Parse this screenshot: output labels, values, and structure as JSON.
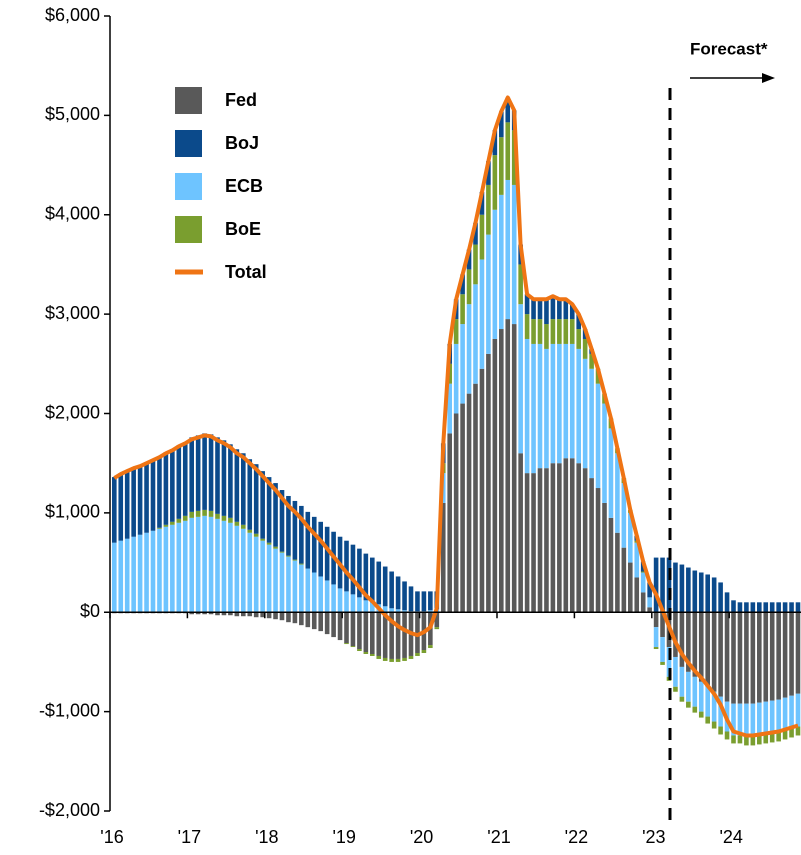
{
  "chart_data": {
    "type": "bar",
    "stacked": true,
    "categories": [
      "'16",
      null,
      null,
      null,
      null,
      null,
      null,
      null,
      null,
      null,
      null,
      null,
      "'17",
      null,
      null,
      null,
      null,
      null,
      null,
      null,
      null,
      null,
      null,
      null,
      "'18",
      null,
      null,
      null,
      null,
      null,
      null,
      null,
      null,
      null,
      null,
      null,
      "'19",
      null,
      null,
      null,
      null,
      null,
      null,
      null,
      null,
      null,
      null,
      null,
      "'20",
      null,
      null,
      null,
      null,
      null,
      null,
      null,
      null,
      null,
      null,
      null,
      "'21",
      null,
      null,
      null,
      null,
      null,
      null,
      null,
      null,
      null,
      null,
      null,
      "'22",
      null,
      null,
      null,
      null,
      null,
      null,
      null,
      null,
      null,
      null,
      null,
      "'23",
      null,
      null,
      null,
      null,
      null,
      null,
      null,
      null,
      null,
      null,
      null,
      "'24",
      null,
      null,
      null,
      null,
      null,
      null,
      null,
      null,
      null,
      null
    ],
    "series": [
      {
        "name": "Fed",
        "color": "#595959",
        "values": [
          -10,
          -10,
          -10,
          -10,
          -10,
          -10,
          -10,
          -10,
          -10,
          -10,
          -10,
          -10,
          -20,
          -20,
          -20,
          -20,
          -30,
          -30,
          -30,
          -40,
          -40,
          -40,
          -50,
          -50,
          -60,
          -70,
          -80,
          -100,
          -110,
          -130,
          -150,
          -170,
          -190,
          -220,
          -250,
          -280,
          -310,
          -340,
          -370,
          -400,
          -420,
          -440,
          -460,
          -470,
          -470,
          -460,
          -440,
          -410,
          -380,
          -330,
          -150,
          1100,
          1800,
          2000,
          2100,
          2200,
          2300,
          2450,
          2600,
          2750,
          2850,
          2950,
          2900,
          1600,
          1400,
          1400,
          1450,
          1450,
          1500,
          1500,
          1550,
          1550,
          1500,
          1450,
          1350,
          1250,
          1100,
          950,
          800,
          650,
          500,
          350,
          200,
          50,
          -150,
          -250,
          -350,
          -450,
          -550,
          -600,
          -650,
          -700,
          -750,
          -800,
          -850,
          -900,
          -920,
          -920,
          -920,
          -920,
          -910,
          -900,
          -890,
          -880,
          -860,
          -840,
          -820
        ]
      },
      {
        "name": "BoJ",
        "color": "#0b4a8b",
        "values": [
          660,
          680,
          690,
          700,
          700,
          710,
          720,
          720,
          730,
          730,
          740,
          740,
          750,
          760,
          770,
          770,
          770,
          760,
          740,
          730,
          720,
          710,
          700,
          680,
          660,
          640,
          620,
          600,
          590,
          580,
          570,
          560,
          550,
          540,
          530,
          520,
          510,
          500,
          490,
          470,
          450,
          430,
          400,
          370,
          330,
          290,
          250,
          200,
          200,
          190,
          180,
          200,
          200,
          200,
          200,
          200,
          220,
          230,
          240,
          250,
          260,
          250,
          200,
          200,
          200,
          200,
          200,
          250,
          230,
          200,
          200,
          150,
          150,
          100,
          50,
          0,
          0,
          0,
          0,
          0,
          0,
          50,
          100,
          150,
          550,
          550,
          550,
          500,
          480,
          450,
          420,
          400,
          380,
          350,
          300,
          200,
          120,
          100,
          100,
          100,
          100,
          100,
          100,
          100,
          100,
          100,
          100
        ]
      },
      {
        "name": "ECB",
        "color": "#6ec4ff",
        "values": [
          700,
          720,
          740,
          760,
          780,
          800,
          820,
          840,
          860,
          880,
          900,
          920,
          950,
          960,
          970,
          960,
          940,
          920,
          900,
          870,
          840,
          800,
          760,
          720,
          680,
          640,
          600,
          560,
          520,
          480,
          440,
          400,
          360,
          320,
          280,
          240,
          210,
          180,
          150,
          120,
          100,
          80,
          60,
          40,
          30,
          20,
          10,
          10,
          10,
          20,
          30,
          300,
          500,
          700,
          800,
          900,
          1000,
          1100,
          1200,
          1300,
          1350,
          1400,
          1400,
          1500,
          1350,
          1300,
          1250,
          1200,
          1200,
          1200,
          1150,
          1150,
          1150,
          1100,
          1100,
          1050,
          1000,
          900,
          800,
          650,
          500,
          350,
          200,
          100,
          -200,
          -250,
          -300,
          -300,
          -300,
          -300,
          -300,
          -300,
          -300,
          -300,
          -300,
          -300,
          -320,
          -320,
          -330,
          -330,
          -330,
          -330,
          -330,
          -330,
          -330,
          -330,
          -330
        ]
      },
      {
        "name": "BoE",
        "color": "#7a9e2f",
        "values": [
          0,
          0,
          0,
          0,
          0,
          0,
          0,
          10,
          20,
          30,
          40,
          50,
          60,
          60,
          60,
          60,
          50,
          50,
          50,
          40,
          40,
          30,
          30,
          20,
          20,
          20,
          10,
          10,
          10,
          10,
          0,
          0,
          0,
          0,
          0,
          0,
          -10,
          -10,
          -20,
          -20,
          -20,
          -30,
          -30,
          -30,
          -30,
          -30,
          -30,
          -30,
          -30,
          -30,
          -20,
          100,
          200,
          250,
          300,
          350,
          400,
          450,
          500,
          550,
          580,
          580,
          550,
          400,
          250,
          250,
          250,
          250,
          250,
          250,
          250,
          250,
          200,
          200,
          150,
          150,
          100,
          100,
          50,
          50,
          30,
          20,
          10,
          0,
          -20,
          -30,
          -40,
          -50,
          -50,
          -60,
          -60,
          -60,
          -70,
          -70,
          -80,
          -80,
          -80,
          -80,
          -90,
          -90,
          -90,
          -90,
          -90,
          -90,
          -90,
          -90,
          -90
        ]
      },
      {
        "name": "Total",
        "type": "line",
        "color": "#ef7414",
        "values": [
          1350,
          1390,
          1420,
          1450,
          1470,
          1500,
          1530,
          1560,
          1600,
          1630,
          1670,
          1700,
          1740,
          1760,
          1780,
          1770,
          1730,
          1700,
          1660,
          1600,
          1560,
          1500,
          1440,
          1370,
          1300,
          1230,
          1150,
          1070,
          1010,
          940,
          860,
          790,
          720,
          640,
          560,
          480,
          400,
          330,
          250,
          170,
          110,
          40,
          -30,
          -90,
          -140,
          -180,
          -210,
          -230,
          -200,
          -150,
          40,
          1700,
          2700,
          3150,
          3400,
          3650,
          3920,
          4230,
          4540,
          4850,
          5040,
          5180,
          5050,
          3700,
          3200,
          3150,
          3150,
          3150,
          3180,
          3150,
          3150,
          3100,
          3000,
          2850,
          2650,
          2450,
          2200,
          1950,
          1650,
          1350,
          1030,
          770,
          510,
          300,
          180,
          20,
          -140,
          -300,
          -420,
          -510,
          -590,
          -660,
          -740,
          -820,
          -930,
          -1080,
          -1200,
          -1220,
          -1240,
          -1240,
          -1230,
          -1220,
          -1210,
          -1200,
          -1180,
          -1160,
          -1140
        ]
      }
    ],
    "ylim": [
      -2000,
      6000
    ],
    "yticks": [
      {
        "value": -2000,
        "label": "-$2,000"
      },
      {
        "value": -1000,
        "label": "-$1,000"
      },
      {
        "value": 0,
        "label": "$0"
      },
      {
        "value": 1000,
        "label": "$1,000"
      },
      {
        "value": 2000,
        "label": "$2,000"
      },
      {
        "value": 3000,
        "label": "$3,000"
      },
      {
        "value": 4000,
        "label": "$4,000"
      },
      {
        "value": 5000,
        "label": "$5,000"
      },
      {
        "value": 6000,
        "label": "$6,000"
      }
    ],
    "annotation": "Forecast*"
  }
}
